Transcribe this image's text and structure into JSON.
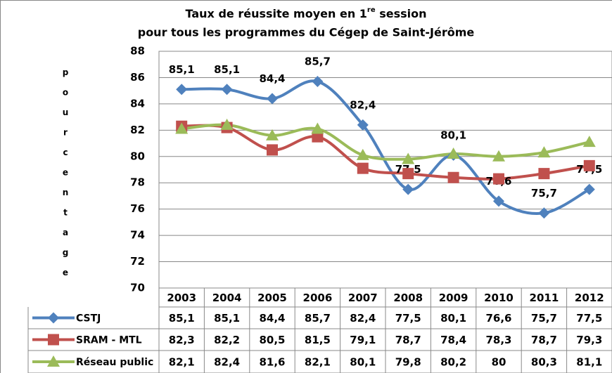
{
  "chart_data": {
    "type": "line",
    "title_line1": "Taux de réussite moyen en 1",
    "title_sup": "re",
    "title_line1_end": " session",
    "title_line2": "pour tous les programmes du Cégep de Saint-Jérôme",
    "y_label": "pourcentage",
    "categories": [
      "2003",
      "2004",
      "2005",
      "2006",
      "2007",
      "2008",
      "2009",
      "2010",
      "2011",
      "2012"
    ],
    "series": [
      {
        "name": "CSTJ",
        "color": "#4f81bd",
        "marker": "diamond",
        "show_labels": true,
        "values": [
          85.1,
          85.1,
          84.4,
          85.7,
          82.4,
          77.5,
          80.1,
          76.6,
          75.7,
          77.5
        ],
        "value_labels": [
          "85,1",
          "85,1",
          "84,4",
          "85,7",
          "82,4",
          "77,5",
          "80,1",
          "76,6",
          "75,7",
          "77,5"
        ]
      },
      {
        "name": "SRAM - MTL",
        "color": "#c0504d",
        "marker": "square",
        "show_labels": false,
        "values": [
          82.3,
          82.2,
          80.5,
          81.5,
          79.1,
          78.7,
          78.4,
          78.3,
          78.7,
          79.3
        ],
        "value_labels": [
          "82,3",
          "82,2",
          "80,5",
          "81,5",
          "79,1",
          "78,7",
          "78,4",
          "78,3",
          "78,7",
          "79,3"
        ]
      },
      {
        "name": "Réseau public",
        "color": "#9bbb59",
        "marker": "triangle",
        "show_labels": false,
        "values": [
          82.1,
          82.4,
          81.6,
          82.1,
          80.1,
          79.8,
          80.2,
          80,
          80.3,
          81.1
        ],
        "value_labels": [
          "82,1",
          "82,4",
          "81,6",
          "82,1",
          "80,1",
          "79,8",
          "80,2",
          "80",
          "80,3",
          "81,1"
        ]
      }
    ],
    "ylim": [
      70,
      88
    ],
    "yticks": [
      70,
      72,
      74,
      76,
      78,
      80,
      82,
      84,
      86,
      88
    ],
    "grid": true,
    "smooth": true,
    "data_table": true
  }
}
